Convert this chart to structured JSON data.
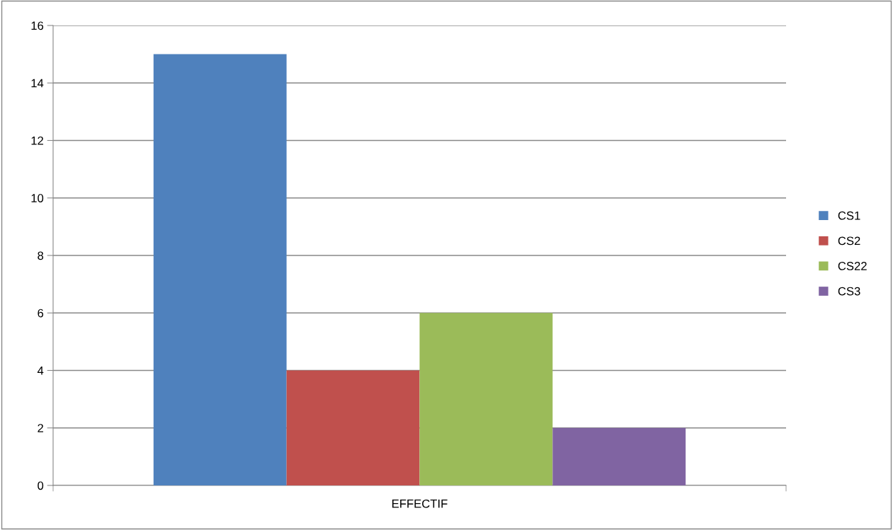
{
  "chart_data": {
    "type": "bar",
    "categories": [
      "EFFECTIF"
    ],
    "series": [
      {
        "name": "CS1",
        "color": "#4f81bd",
        "values": [
          15
        ]
      },
      {
        "name": "CS2",
        "color": "#c0504d",
        "values": [
          4
        ]
      },
      {
        "name": "CS22",
        "color": "#9bbb59",
        "values": [
          6
        ]
      },
      {
        "name": "CS3",
        "color": "#8064a2",
        "values": [
          2
        ]
      }
    ],
    "ylim": [
      0,
      16
    ],
    "yticks": [
      0,
      2,
      4,
      6,
      8,
      10,
      12,
      14,
      16
    ],
    "grid": "y",
    "legend": "right"
  }
}
